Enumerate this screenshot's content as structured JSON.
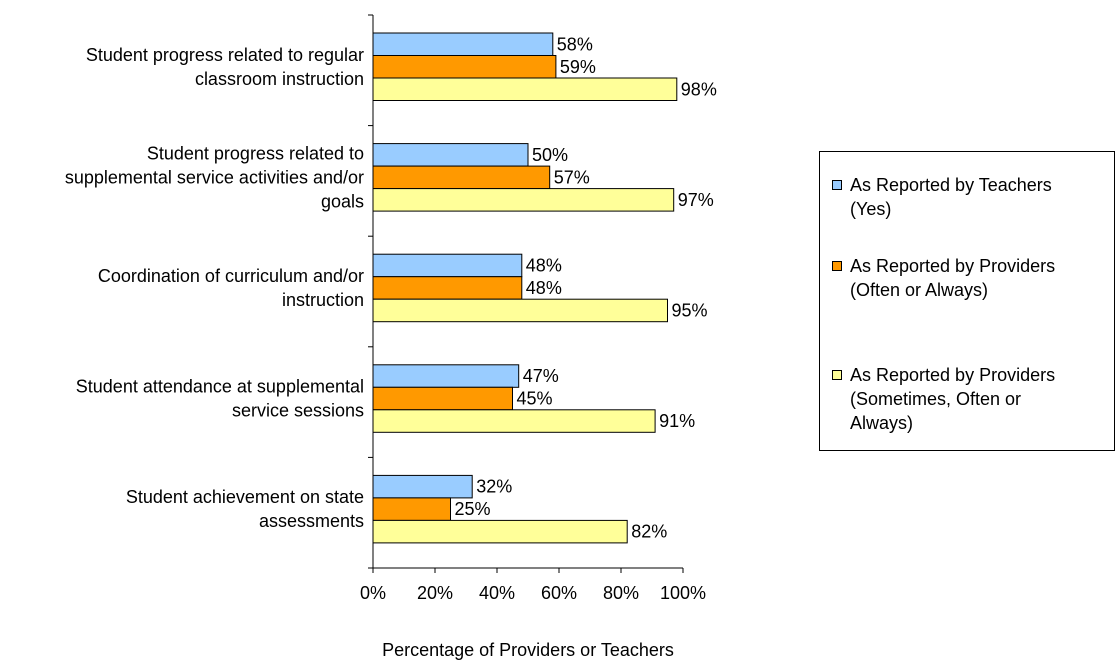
{
  "chart_data": {
    "type": "bar",
    "orientation": "horizontal",
    "categories": [
      [
        "Student progress related to regular",
        "classroom instruction"
      ],
      [
        "Student progress related to",
        "supplemental service activities and/or",
        "goals"
      ],
      [
        "Coordination of curriculum and/or",
        "instruction"
      ],
      [
        "Student attendance at supplemental",
        "service sessions"
      ],
      [
        "Student achievement on state",
        "assessments"
      ]
    ],
    "series": [
      {
        "name": "As Reported by Teachers\n(Yes)",
        "color": "#99ccff",
        "values": [
          58,
          50,
          48,
          47,
          32
        ],
        "labels": [
          "58%",
          "50%",
          "48%",
          "47%",
          "32%"
        ]
      },
      {
        "name": "As Reported by Providers\n(Often or Always)",
        "color": "#ff9900",
        "values": [
          59,
          57,
          48,
          45,
          25
        ],
        "labels": [
          "59%",
          "57%",
          "48%",
          "45%",
          "25%"
        ]
      },
      {
        "name": "As Reported by Providers\n(Sometimes, Often or\nAlways)",
        "color": "#ffff99",
        "values": [
          98,
          97,
          95,
          91,
          82
        ],
        "labels": [
          "98%",
          "97%",
          "95%",
          "91%",
          "82%"
        ]
      }
    ],
    "xlim": [
      0,
      100
    ],
    "xticks": [
      "0%",
      "20%",
      "40%",
      "60%",
      "80%",
      "100%"
    ],
    "xlabel": "Percentage of Providers or Teachers",
    "grid": false,
    "legend_position": "right"
  }
}
